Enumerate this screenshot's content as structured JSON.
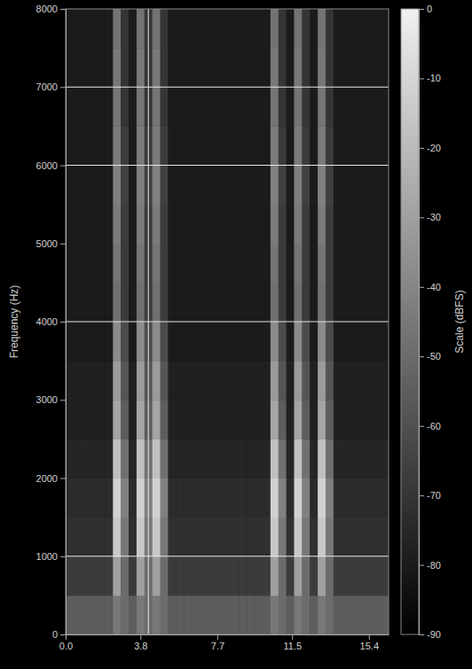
{
  "chart_data": {
    "type": "heatmap",
    "y_label": "Frequency (Hz)",
    "xlim": [
      0,
      16.4
    ],
    "xticks": [
      {
        "value": 0,
        "label": "0.0"
      },
      3.8,
      7.7,
      11.5,
      15.4
    ],
    "ylim": [
      0,
      8000
    ],
    "yticks": [
      0,
      1000,
      2000,
      3000,
      4000,
      5000,
      6000,
      7000,
      8000
    ],
    "cursor_lines": {
      "x": [
        4.2
      ],
      "y": [
        1000,
        4000,
        6000,
        7000
      ]
    },
    "x_bins": [
      0,
      0.4,
      0.8,
      1.2,
      1.6,
      2,
      2.4,
      2.8,
      3.2,
      3.6,
      4,
      4.4,
      4.8,
      5.2,
      5.6,
      6,
      6.4,
      6.8,
      7.2,
      7.6,
      8,
      8.4,
      8.8,
      9.2,
      9.6,
      10,
      10.4,
      10.8,
      11.2,
      11.6,
      12,
      12.4,
      12.8,
      13.2,
      13.6,
      14,
      14.4,
      14.8,
      15.2,
      15.6,
      16,
      16.4
    ],
    "y_bins": [
      0,
      500,
      1000,
      1500,
      2000,
      2500,
      3000,
      3500,
      4000,
      4500,
      5000,
      5500,
      6000,
      6500,
      7000,
      7500,
      8000
    ],
    "cells": [
      [
        -55,
        -55,
        -55,
        -55,
        -55,
        -55,
        -45,
        -50,
        -55,
        -45,
        -50,
        -45,
        -50,
        -55,
        -55,
        -55,
        -55,
        -55,
        -55,
        -55,
        -55,
        -55,
        -55,
        -55,
        -55,
        -55,
        -45,
        -50,
        -55,
        -45,
        -50,
        -55,
        -45,
        -50,
        -55,
        -55,
        -55,
        -55,
        -55,
        -55,
        -55
      ],
      [
        -68,
        -68,
        -68,
        -68,
        -68,
        -68,
        -30,
        -50,
        -68,
        -30,
        -50,
        -30,
        -50,
        -68,
        -68,
        -68,
        -68,
        -68,
        -68,
        -68,
        -68,
        -68,
        -68,
        -68,
        -68,
        -68,
        -30,
        -50,
        -68,
        -30,
        -50,
        -68,
        -30,
        -50,
        -68,
        -68,
        -68,
        -68,
        -68,
        -68,
        -68
      ],
      [
        -72,
        -72,
        -72,
        -72,
        -72,
        -72,
        -15,
        -45,
        -72,
        -15,
        -45,
        -15,
        -45,
        -72,
        -72,
        -72,
        -72,
        -72,
        -72,
        -72,
        -72,
        -72,
        -72,
        -72,
        -72,
        -72,
        -15,
        -45,
        -72,
        -15,
        -45,
        -72,
        -15,
        -45,
        -72,
        -72,
        -72,
        -72,
        -72,
        -72,
        -72
      ],
      [
        -74,
        -74,
        -74,
        -74,
        -74,
        -74,
        -12,
        -42,
        -74,
        -12,
        -42,
        -12,
        -42,
        -74,
        -74,
        -74,
        -74,
        -74,
        -74,
        -74,
        -74,
        -74,
        -74,
        -74,
        -74,
        -74,
        -12,
        -42,
        -74,
        -12,
        -42,
        -74,
        -12,
        -42,
        -74,
        -74,
        -74,
        -74,
        -74,
        -74,
        -74
      ],
      [
        -76,
        -76,
        -76,
        -76,
        -76,
        -76,
        -18,
        -48,
        -76,
        -18,
        -48,
        -18,
        -48,
        -76,
        -76,
        -76,
        -76,
        -76,
        -76,
        -76,
        -76,
        -76,
        -76,
        -76,
        -76,
        -76,
        -18,
        -48,
        -76,
        -18,
        -48,
        -76,
        -18,
        -48,
        -76,
        -76,
        -76,
        -76,
        -76,
        -76,
        -76
      ],
      [
        -78,
        -78,
        -78,
        -78,
        -78,
        -78,
        -28,
        -55,
        -78,
        -28,
        -55,
        -28,
        -55,
        -78,
        -78,
        -78,
        -78,
        -78,
        -78,
        -78,
        -78,
        -78,
        -78,
        -78,
        -78,
        -78,
        -28,
        -55,
        -78,
        -28,
        -55,
        -78,
        -28,
        -55,
        -78,
        -78,
        -78,
        -78,
        -78,
        -78,
        -78
      ],
      [
        -78,
        -78,
        -78,
        -78,
        -78,
        -78,
        -32,
        -58,
        -78,
        -32,
        -58,
        -32,
        -58,
        -78,
        -78,
        -78,
        -78,
        -78,
        -78,
        -78,
        -78,
        -78,
        -78,
        -78,
        -78,
        -78,
        -32,
        -58,
        -78,
        -32,
        -58,
        -78,
        -32,
        -58,
        -78,
        -78,
        -78,
        -78,
        -78,
        -78,
        -78
      ],
      [
        -80,
        -80,
        -80,
        -80,
        -80,
        -80,
        -38,
        -62,
        -80,
        -38,
        -62,
        -38,
        -62,
        -80,
        -80,
        -80,
        -80,
        -80,
        -80,
        -80,
        -80,
        -80,
        -80,
        -80,
        -80,
        -80,
        -38,
        -62,
        -80,
        -38,
        -62,
        -80,
        -38,
        -62,
        -80,
        -80,
        -80,
        -80,
        -80,
        -80,
        -80
      ],
      [
        -80,
        -80,
        -80,
        -80,
        -80,
        -80,
        -48,
        -68,
        -80,
        -48,
        -68,
        -48,
        -68,
        -80,
        -80,
        -80,
        -80,
        -80,
        -80,
        -80,
        -80,
        -80,
        -80,
        -80,
        -80,
        -80,
        -48,
        -68,
        -80,
        -48,
        -68,
        -80,
        -48,
        -68,
        -80,
        -80,
        -80,
        -80,
        -80,
        -80,
        -80
      ],
      [
        -80,
        -80,
        -80,
        -80,
        -80,
        -80,
        -46,
        -68,
        -80,
        -46,
        -68,
        -46,
        -68,
        -80,
        -80,
        -80,
        -80,
        -80,
        -80,
        -80,
        -80,
        -80,
        -80,
        -80,
        -80,
        -80,
        -46,
        -68,
        -80,
        -46,
        -68,
        -80,
        -46,
        -68,
        -80,
        -80,
        -80,
        -80,
        -80,
        -80,
        -80
      ],
      [
        -80,
        -80,
        -80,
        -80,
        -80,
        -80,
        -44,
        -68,
        -80,
        -44,
        -68,
        -44,
        -68,
        -80,
        -80,
        -80,
        -80,
        -80,
        -80,
        -80,
        -80,
        -80,
        -80,
        -80,
        -80,
        -80,
        -44,
        -68,
        -80,
        -44,
        -68,
        -80,
        -44,
        -68,
        -80,
        -80,
        -80,
        -80,
        -80,
        -80,
        -80
      ],
      [
        -80,
        -80,
        -80,
        -80,
        -80,
        -80,
        -42,
        -66,
        -80,
        -42,
        -66,
        -42,
        -66,
        -80,
        -80,
        -80,
        -80,
        -80,
        -80,
        -80,
        -80,
        -80,
        -80,
        -80,
        -80,
        -80,
        -42,
        -66,
        -80,
        -42,
        -66,
        -80,
        -42,
        -66,
        -80,
        -80,
        -80,
        -80,
        -80,
        -80,
        -80
      ],
      [
        -80,
        -80,
        -80,
        -80,
        -80,
        -80,
        -44,
        -68,
        -80,
        -44,
        -68,
        -44,
        -68,
        -80,
        -80,
        -80,
        -80,
        -80,
        -80,
        -80,
        -80,
        -80,
        -80,
        -80,
        -80,
        -80,
        -44,
        -68,
        -80,
        -44,
        -68,
        -80,
        -44,
        -68,
        -80,
        -80,
        -80,
        -80,
        -80,
        -80,
        -80
      ],
      [
        -80,
        -80,
        -80,
        -80,
        -80,
        -80,
        -46,
        -70,
        -80,
        -46,
        -70,
        -46,
        -70,
        -80,
        -80,
        -80,
        -80,
        -80,
        -80,
        -80,
        -80,
        -80,
        -80,
        -80,
        -80,
        -80,
        -46,
        -70,
        -80,
        -46,
        -70,
        -80,
        -46,
        -70,
        -80,
        -80,
        -80,
        -80,
        -80,
        -80,
        -80
      ],
      [
        -80,
        -80,
        -80,
        -80,
        -80,
        -80,
        -45,
        -70,
        -80,
        -45,
        -70,
        -45,
        -70,
        -80,
        -80,
        -80,
        -80,
        -80,
        -80,
        -80,
        -80,
        -80,
        -80,
        -80,
        -80,
        -80,
        -45,
        -70,
        -80,
        -45,
        -70,
        -80,
        -45,
        -70,
        -80,
        -80,
        -80,
        -80,
        -80,
        -80,
        -80
      ],
      [
        -80,
        -80,
        -80,
        -80,
        -80,
        -80,
        -47,
        -70,
        -80,
        -47,
        -70,
        -47,
        -70,
        -80,
        -80,
        -80,
        -80,
        -80,
        -80,
        -80,
        -80,
        -80,
        -80,
        -80,
        -80,
        -80,
        -47,
        -70,
        -80,
        -47,
        -70,
        -80,
        -47,
        -70,
        -80,
        -80,
        -80,
        -80,
        -80,
        -80,
        -80
      ]
    ],
    "colorbar": {
      "label": "Scale (dBFS)",
      "range": [
        -90,
        0
      ],
      "ticks": [
        0,
        -10,
        -20,
        -30,
        -40,
        -50,
        -60,
        -70,
        -80,
        -90
      ]
    }
  }
}
